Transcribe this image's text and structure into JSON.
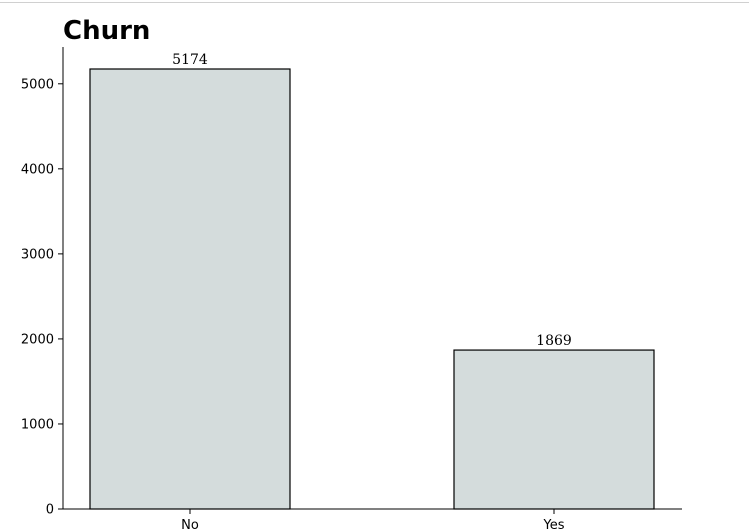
{
  "chart_data": {
    "type": "bar",
    "title": "Churn",
    "categories": [
      "No",
      "Yes"
    ],
    "values": [
      5174,
      1869
    ],
    "data_labels": [
      "5174",
      "1869"
    ],
    "xlabel": "",
    "ylabel": "",
    "ylim": [
      0,
      5432.7
    ],
    "yticks": [
      0,
      1000,
      2000,
      3000,
      4000,
      5000
    ],
    "ytick_labels": [
      "0",
      "1000",
      "2000",
      "3000",
      "4000",
      "5000"
    ],
    "grid": false,
    "legend": "none",
    "colors": {
      "bar_fill": "#d4dcdc",
      "bar_edge": "#000000",
      "axis": "#000000"
    }
  }
}
